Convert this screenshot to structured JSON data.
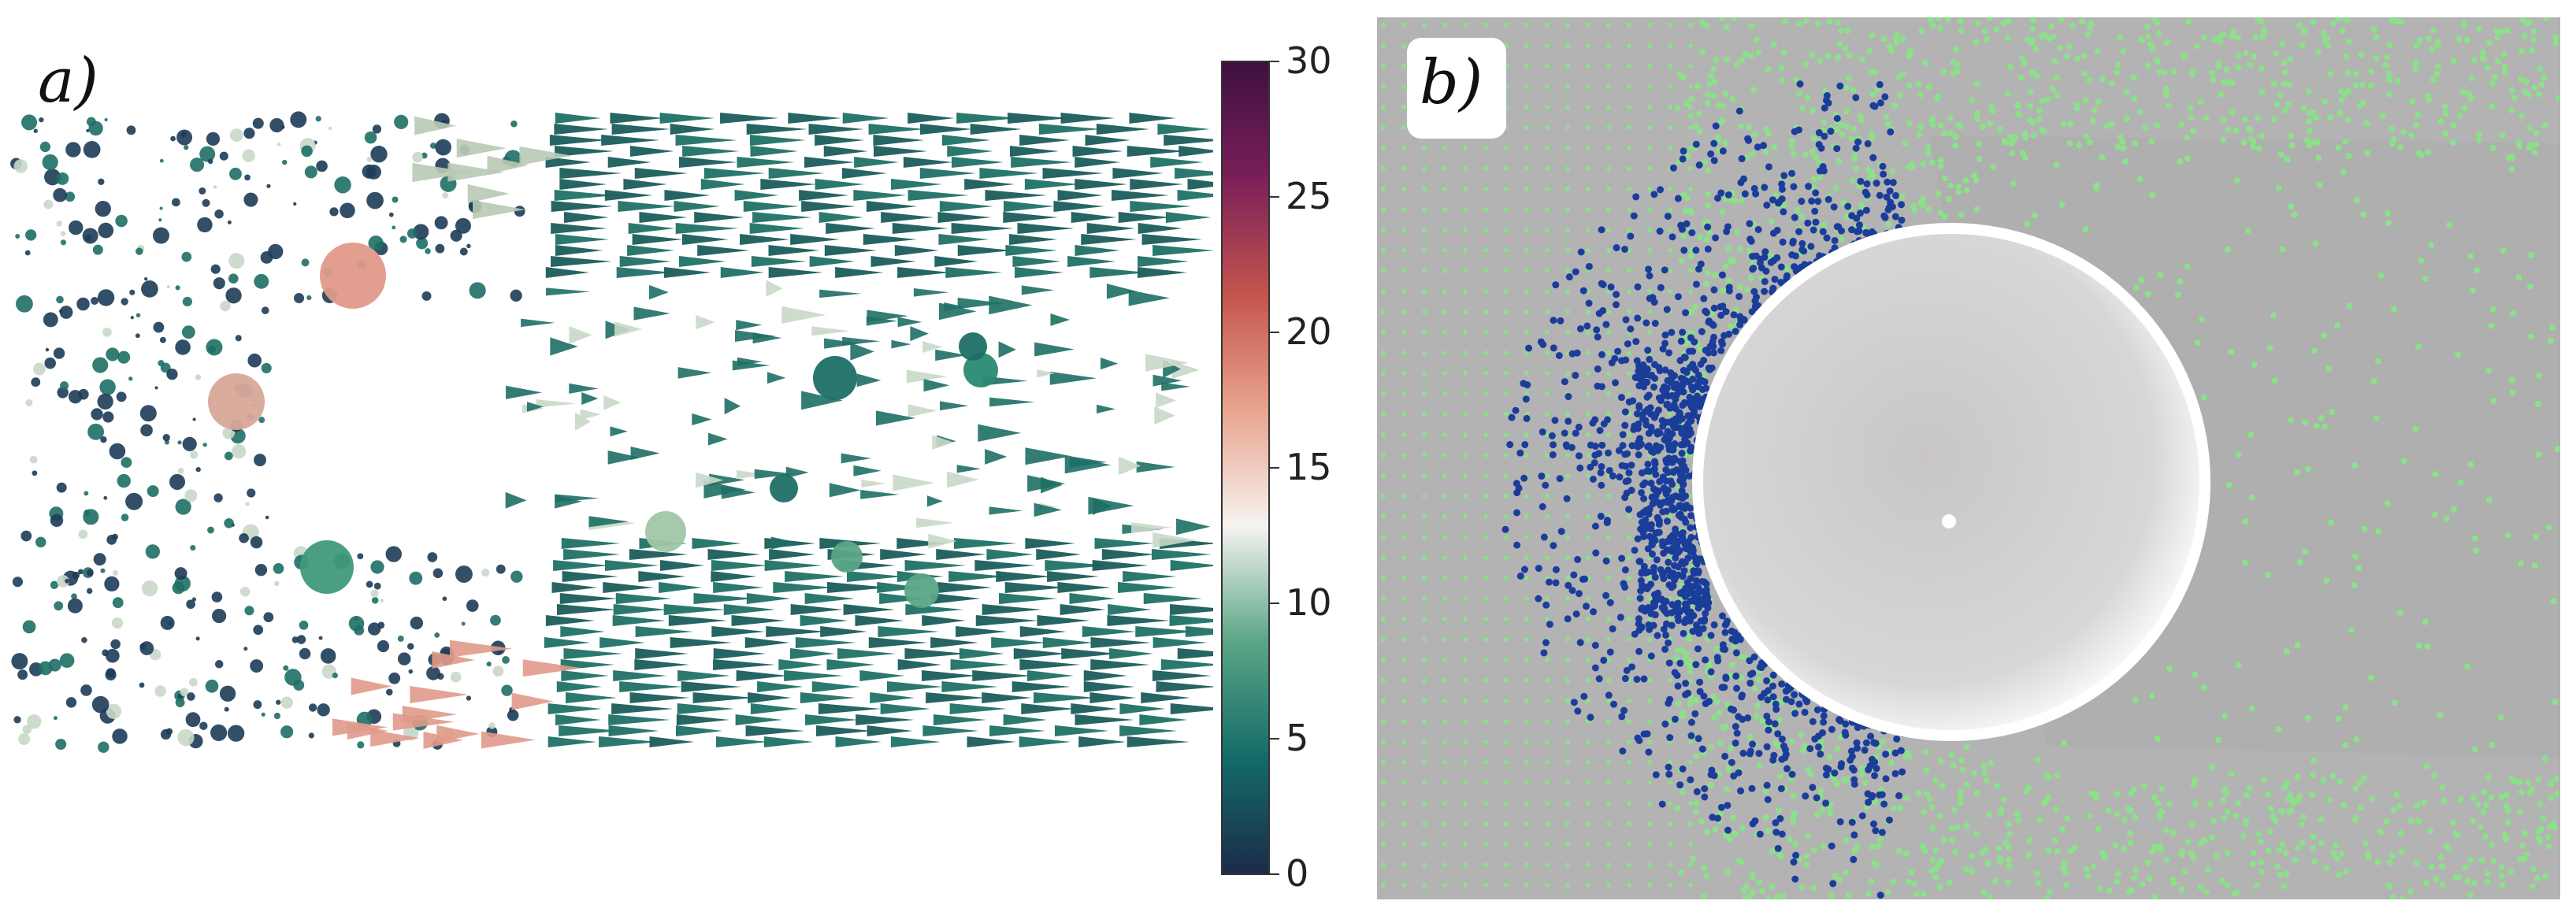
{
  "panel_a": {
    "label": "a)",
    "colorbar": {
      "ticks": [
        "30",
        "25",
        "20",
        "15",
        "10",
        "5",
        "0"
      ],
      "min": 0,
      "max": 30,
      "colors": [
        "#1c2b4a",
        "#136b68",
        "#5aa586",
        "#f6f3f0",
        "#e8a48e",
        "#c4544e",
        "#7a1f58",
        "#3d0f3f"
      ]
    },
    "glyph_colors": {
      "low": "#1d3c57",
      "mid": "#1e6f66",
      "high": "#c9d8c9",
      "peak": "#e09a8a"
    }
  },
  "panel_b": {
    "label": "b)",
    "background": "#b3b3b3",
    "particle_colors": {
      "fluid": "#8de08a",
      "slow": "#1b3d9a"
    },
    "sphere_color": "#f2f2f2"
  }
}
